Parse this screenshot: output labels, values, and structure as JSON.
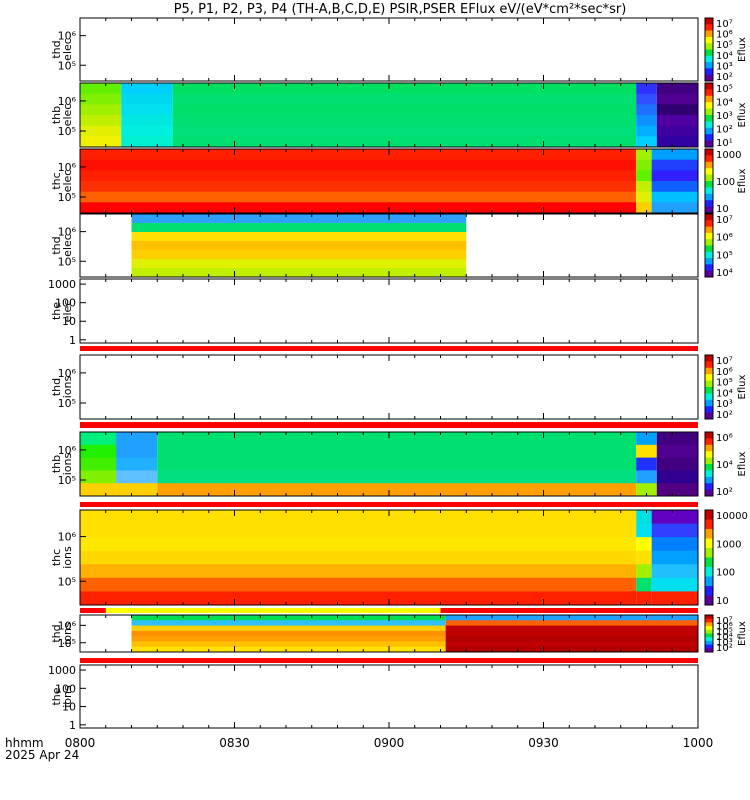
{
  "title": "P5, P1, P2, P3, P4 (TH-A,B,C,D,E) PSIR,PSER EFlux eV/(eV*cm²*sec*sr)",
  "time_axis": {
    "ticks": [
      "0800",
      "0830",
      "0900",
      "0930",
      "1000"
    ],
    "format_label": "hhmm",
    "date_label": "2025 Apr 24"
  },
  "chart_data": [
    {
      "type": "heatmap",
      "probe": "thd",
      "species": "elec",
      "ylabel": [
        "thd",
        "elec"
      ],
      "y_ticks": [
        "10⁶",
        "10⁵"
      ],
      "zlabel": "Eflux",
      "z_ticks": [
        "10⁷",
        "10⁶",
        "10⁵",
        "10⁴",
        "10³",
        "10²"
      ],
      "data_span": [
        null,
        null
      ],
      "empty": true
    },
    {
      "type": "heatmap",
      "probe": "thb",
      "species": "elec",
      "ylabel": [
        "thb",
        "elec"
      ],
      "y_ticks": [
        "10⁶",
        "10⁵"
      ],
      "zlabel": "Eflux",
      "z_ticks": [
        "10⁵",
        "10⁴",
        "10³",
        "10²",
        "10¹"
      ],
      "data_span": [
        "0800",
        "1000"
      ],
      "empty": false
    },
    {
      "type": "heatmap",
      "probe": "thc",
      "species": "elec",
      "ylabel": [
        "thc",
        "elec"
      ],
      "y_ticks": [
        "10⁶",
        "10⁵"
      ],
      "zlabel": "Eflux",
      "z_ticks": [
        "1000",
        "100",
        "10"
      ],
      "data_span": [
        "0800",
        "1000"
      ],
      "empty": false
    },
    {
      "type": "heatmap",
      "probe": "thd",
      "species": "elec",
      "ylabel": [
        "thd",
        "elec"
      ],
      "y_ticks": [
        "10⁶",
        "10⁵"
      ],
      "zlabel": "",
      "z_ticks": [
        "10⁷",
        "10⁶",
        "10⁵",
        "10⁴"
      ],
      "data_span": [
        "0810",
        "0915"
      ],
      "empty": false
    },
    {
      "type": "heatmap",
      "probe": "the",
      "species": "elec",
      "ylabel": [
        "the",
        "elec"
      ],
      "y_ticks": [
        "1000",
        "100",
        "10",
        "1"
      ],
      "zlabel": "",
      "z_ticks": [],
      "data_span": [
        null,
        null
      ],
      "empty": true
    },
    {
      "type": "heatmap",
      "probe": "thd",
      "species": "ions",
      "ylabel": [
        "thd",
        "ions"
      ],
      "y_ticks": [
        "10⁶",
        "10⁵"
      ],
      "zlabel": "Eflux",
      "z_ticks": [
        "10⁷",
        "10⁶",
        "10⁵",
        "10⁴",
        "10³",
        "10²"
      ],
      "data_span": [
        null,
        null
      ],
      "empty": true
    },
    {
      "type": "heatmap",
      "probe": "thb",
      "species": "ions",
      "ylabel": [
        "thb",
        "ions"
      ],
      "y_ticks": [
        "10⁶",
        "10⁵"
      ],
      "zlabel": "Eflux",
      "z_ticks": [
        "10⁶",
        "10⁴",
        "10²"
      ],
      "data_span": [
        "0800",
        "1000"
      ],
      "empty": false
    },
    {
      "type": "heatmap",
      "probe": "thc",
      "species": "ions",
      "ylabel": [
        "thc",
        "ions"
      ],
      "y_ticks": [
        "10⁶",
        "10⁵"
      ],
      "zlabel": "",
      "z_ticks": [
        "10000",
        "1000",
        "100",
        "10"
      ],
      "data_span": [
        "0800",
        "1000"
      ],
      "empty": false
    },
    {
      "type": "heatmap",
      "probe": "thd",
      "species": "ions",
      "ylabel": [
        "thd",
        "ions"
      ],
      "y_ticks": [
        "10⁶",
        "10⁵"
      ],
      "zlabel": "Eflux",
      "z_ticks": [
        "10⁷",
        "10⁶",
        "10⁵",
        "10⁴",
        "10³",
        "10²"
      ],
      "data_span": [
        "0810",
        "1000"
      ],
      "empty": false
    },
    {
      "type": "heatmap",
      "probe": "the",
      "species": "ions",
      "ylabel": [
        "the",
        "ions"
      ],
      "y_ticks": [
        "1000",
        "100",
        "10",
        "1"
      ],
      "zlabel": "",
      "z_ticks": [],
      "data_span": [
        null,
        null
      ],
      "empty": true
    }
  ],
  "colors": {
    "axis": "#000000",
    "bar_red": "#ff0000",
    "bar_yellow": "#ffff00",
    "colorbar": [
      "#5a009a",
      "#2020ff",
      "#00a0ff",
      "#00f0e0",
      "#00e040",
      "#a0f000",
      "#ffff00",
      "#ffa000",
      "#ff2000",
      "#c00000"
    ]
  }
}
